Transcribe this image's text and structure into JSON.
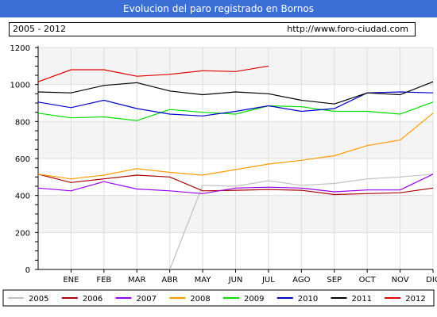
{
  "header": {
    "title": "Evolucion del paro registrado en Bornos"
  },
  "subheader": {
    "period": "2005 - 2012",
    "url": "http://www.foro-ciudad.com"
  },
  "colors": {
    "title_bg": "#3b6fd6",
    "series": {
      "2005": "#c0c0c0",
      "2006": "#aa0000",
      "2007": "#9900ee",
      "2008": "#ff9900",
      "2009": "#00dd00",
      "2010": "#0000cc",
      "2011": "#000000",
      "2012": "#dd0000"
    }
  },
  "chart_data": {
    "type": "line",
    "title": "Evolucion del paro registrado en Bornos",
    "categories": [
      "",
      "ENE",
      "FEB",
      "MAR",
      "ABR",
      "MAY",
      "JUN",
      "JUL",
      "AGO",
      "SEP",
      "OCT",
      "NOV",
      "DIC"
    ],
    "ylim": [
      0,
      1200
    ],
    "yticks": [
      0,
      200,
      400,
      600,
      800,
      1000,
      1200
    ],
    "grid": true,
    "legend": "bottom",
    "series": [
      {
        "name": "2005",
        "values": [
          null,
          null,
          null,
          null,
          0,
          455,
          450,
          480,
          455,
          465,
          490,
          500,
          515
        ]
      },
      {
        "name": "2006",
        "values": [
          515,
          470,
          490,
          510,
          500,
          425,
          428,
          432,
          428,
          405,
          410,
          415,
          440
        ]
      },
      {
        "name": "2007",
        "values": [
          440,
          425,
          475,
          435,
          425,
          410,
          440,
          445,
          440,
          420,
          430,
          430,
          515
        ]
      },
      {
        "name": "2008",
        "values": [
          515,
          490,
          510,
          545,
          525,
          510,
          540,
          570,
          590,
          615,
          670,
          700,
          845
        ]
      },
      {
        "name": "2009",
        "values": [
          845,
          820,
          825,
          805,
          865,
          850,
          840,
          885,
          880,
          855,
          855,
          840,
          905
        ]
      },
      {
        "name": "2010",
        "values": [
          905,
          875,
          915,
          870,
          840,
          830,
          855,
          885,
          855,
          870,
          955,
          960,
          955
        ]
      },
      {
        "name": "2011",
        "values": [
          960,
          955,
          995,
          1010,
          965,
          945,
          960,
          950,
          915,
          895,
          955,
          945,
          1015
        ]
      },
      {
        "name": "2012",
        "values": [
          1015,
          1080,
          1080,
          1045,
          1055,
          1075,
          1070,
          1100,
          null,
          null,
          null,
          null,
          null
        ]
      }
    ]
  }
}
